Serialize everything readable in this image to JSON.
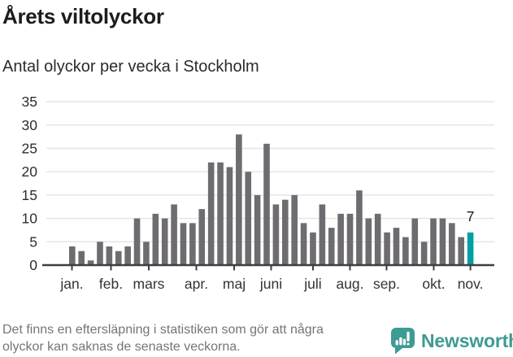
{
  "chart_data": {
    "type": "bar",
    "title": "Årets viltolyckor",
    "subtitle": "Antal olyckor per vecka i Stockholm",
    "values": [
      4,
      3,
      1,
      5,
      4,
      3,
      4,
      10,
      5,
      11,
      10,
      13,
      9,
      9,
      12,
      22,
      22,
      21,
      28,
      20,
      15,
      26,
      13,
      14,
      15,
      9,
      7,
      13,
      8,
      11,
      11,
      16,
      10,
      11,
      7,
      8,
      6,
      10,
      5,
      10,
      10,
      9,
      6,
      7
    ],
    "highlight_index": 43,
    "highlight_label": "7",
    "x_tick_labels": [
      "jan.",
      "feb.",
      "mars",
      "apr.",
      "maj",
      "juni",
      "juli",
      "aug.",
      "sep.",
      "okt.",
      "nov."
    ],
    "y_ticks": [
      0,
      5,
      10,
      15,
      20,
      25,
      30,
      35
    ],
    "ylim": [
      0,
      35
    ],
    "grid": true,
    "legend": "none",
    "bar_color": "#6e6c71",
    "highlight_color": "#00a0a3",
    "grid_color": "#e3e3e3",
    "axis_color": "#3e3e3e",
    "label_color": "#333333"
  },
  "footer": {
    "note_line1": "Det finns en eftersläpning i statistiken som gör att några",
    "note_line2": "olyckor kan saknas de senaste veckorna.",
    "brand": "Newsworthy",
    "brand_color": "#3d9b94"
  }
}
